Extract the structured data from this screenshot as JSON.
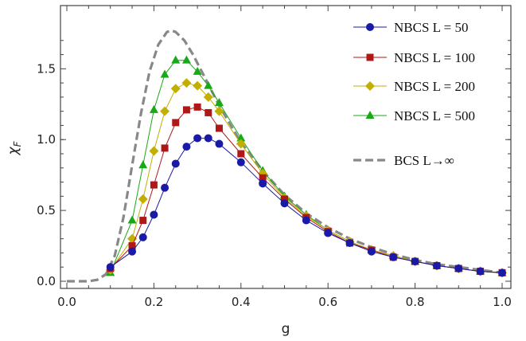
{
  "chart_data": {
    "type": "line",
    "xlabel": "g",
    "ylabel": "χ_F",
    "xlim": [
      0.0,
      1.0
    ],
    "ylim": [
      0.0,
      1.8
    ],
    "x_ticks": [
      "0.0",
      "0.2",
      "0.4",
      "0.6",
      "0.8",
      "1.0"
    ],
    "y_ticks": [
      "0.0",
      "0.5",
      "1.0",
      "1.5"
    ],
    "x_tick_values": [
      0.0,
      0.2,
      0.4,
      0.6,
      0.8,
      1.0
    ],
    "y_tick_values": [
      0.0,
      0.5,
      1.0,
      1.5
    ],
    "legend_position": "top-right",
    "grid": false,
    "series": [
      {
        "name": "NBCS L = 50",
        "color": "#1a1aa8",
        "marker": "circle",
        "x": [
          0.1,
          0.15,
          0.175,
          0.2,
          0.225,
          0.25,
          0.275,
          0.3,
          0.325,
          0.35,
          0.4,
          0.45,
          0.5,
          0.55,
          0.6,
          0.65,
          0.7,
          0.75,
          0.8,
          0.85,
          0.9,
          0.95,
          1.0
        ],
        "y": [
          0.1,
          0.21,
          0.31,
          0.47,
          0.66,
          0.83,
          0.95,
          1.01,
          1.01,
          0.97,
          0.84,
          0.69,
          0.55,
          0.43,
          0.34,
          0.27,
          0.21,
          0.17,
          0.14,
          0.11,
          0.09,
          0.07,
          0.06
        ]
      },
      {
        "name": "NBCS L = 100",
        "color": "#b01818",
        "marker": "square",
        "x": [
          0.1,
          0.15,
          0.175,
          0.2,
          0.225,
          0.25,
          0.275,
          0.3,
          0.325,
          0.35,
          0.4,
          0.45,
          0.5,
          0.55,
          0.6,
          0.65,
          0.7,
          0.75,
          0.8,
          0.85,
          0.9,
          0.95,
          1.0
        ],
        "y": [
          0.09,
          0.25,
          0.43,
          0.68,
          0.94,
          1.12,
          1.21,
          1.23,
          1.19,
          1.08,
          0.9,
          0.73,
          0.58,
          0.45,
          0.35,
          0.27,
          0.22,
          0.17,
          0.14,
          0.11,
          0.09,
          0.07,
          0.06
        ]
      },
      {
        "name": "NBCS L = 200",
        "color": "#c2b000",
        "marker": "diamond",
        "x": [
          0.1,
          0.15,
          0.175,
          0.2,
          0.225,
          0.25,
          0.275,
          0.3,
          0.325,
          0.35,
          0.4,
          0.45,
          0.5,
          0.55,
          0.6,
          0.65,
          0.7,
          0.75,
          0.8,
          0.85,
          0.9,
          0.95,
          1.0
        ],
        "y": [
          0.08,
          0.3,
          0.58,
          0.92,
          1.2,
          1.36,
          1.4,
          1.38,
          1.3,
          1.2,
          0.97,
          0.76,
          0.59,
          0.46,
          0.36,
          0.28,
          0.22,
          0.18,
          0.14,
          0.11,
          0.09,
          0.07,
          0.06
        ]
      },
      {
        "name": "NBCS L = 500",
        "color": "#18a818",
        "marker": "triangle",
        "x": [
          0.1,
          0.15,
          0.175,
          0.2,
          0.225,
          0.25,
          0.275,
          0.3,
          0.325,
          0.35,
          0.4,
          0.45,
          0.5,
          0.55,
          0.6,
          0.65,
          0.7,
          0.75,
          0.8,
          0.85,
          0.9,
          0.95,
          1.0
        ],
        "y": [
          0.06,
          0.43,
          0.82,
          1.21,
          1.46,
          1.56,
          1.56,
          1.48,
          1.38,
          1.26,
          1.01,
          0.78,
          0.6,
          0.47,
          0.36,
          0.28,
          0.22,
          0.18,
          0.14,
          0.11,
          0.09,
          0.07,
          0.06
        ]
      },
      {
        "name": "BCS  L→∞",
        "color": "#888888",
        "marker": "none",
        "dashed": true,
        "x": [
          0.0,
          0.05,
          0.07,
          0.09,
          0.11,
          0.13,
          0.15,
          0.17,
          0.19,
          0.21,
          0.23,
          0.24,
          0.25,
          0.27,
          0.29,
          0.31,
          0.33,
          0.35,
          0.4,
          0.45,
          0.5,
          0.55,
          0.6,
          0.65,
          0.7,
          0.75,
          0.8,
          0.85,
          0.9,
          0.95,
          1.0
        ],
        "y": [
          0.0,
          0.0,
          0.01,
          0.05,
          0.18,
          0.45,
          0.82,
          1.18,
          1.48,
          1.67,
          1.76,
          1.77,
          1.76,
          1.7,
          1.6,
          1.48,
          1.36,
          1.24,
          0.98,
          0.78,
          0.61,
          0.48,
          0.38,
          0.3,
          0.24,
          0.19,
          0.15,
          0.12,
          0.1,
          0.08,
          0.06
        ]
      }
    ]
  }
}
